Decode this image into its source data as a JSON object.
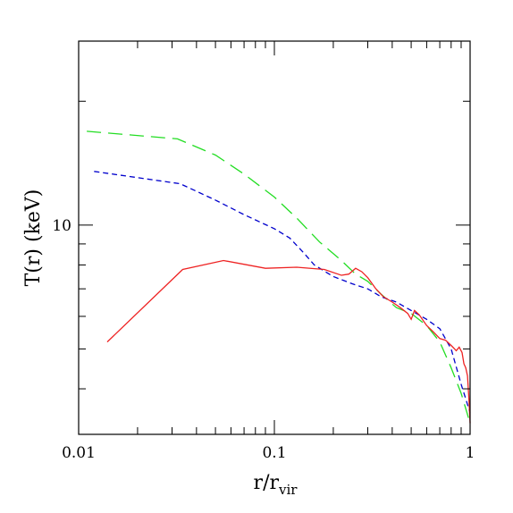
{
  "chart_data": {
    "type": "line",
    "title": "",
    "xlabel": "r/r",
    "xlabel_sub": "vir",
    "ylabel": "T(r)  (keV)",
    "xscale": "log",
    "yscale": "log",
    "xlim": [
      0.01,
      1
    ],
    "ylim": [
      3.1,
      28
    ],
    "x_ticks": [
      {
        "value": 0.01,
        "label": "0.01"
      },
      {
        "value": 0.1,
        "label": "0.1"
      },
      {
        "value": 1,
        "label": "1"
      }
    ],
    "y_ticks": [
      {
        "value": 10,
        "label": "10"
      }
    ],
    "grid": false,
    "legend": "none",
    "series": [
      {
        "color": "#22dd22",
        "dash": "long-dash",
        "points": [
          [
            0.011,
            16.9
          ],
          [
            0.032,
            16.2
          ],
          [
            0.05,
            14.8
          ],
          [
            0.07,
            13.3
          ],
          [
            0.1,
            11.7
          ],
          [
            0.13,
            10.4
          ],
          [
            0.17,
            9.1
          ],
          [
            0.22,
            8.2
          ],
          [
            0.26,
            7.6
          ],
          [
            0.3,
            7.3
          ],
          [
            0.35,
            6.8
          ],
          [
            0.42,
            6.3
          ],
          [
            0.5,
            6.1
          ],
          [
            0.6,
            5.7
          ],
          [
            0.7,
            5.2
          ],
          [
            0.8,
            4.5
          ],
          [
            0.9,
            3.9
          ],
          [
            1.0,
            3.3
          ]
        ]
      },
      {
        "color": "#0000cc",
        "dash": "short-dash",
        "points": [
          [
            0.012,
            13.5
          ],
          [
            0.033,
            12.6
          ],
          [
            0.05,
            11.5
          ],
          [
            0.07,
            10.6
          ],
          [
            0.1,
            9.8
          ],
          [
            0.12,
            9.3
          ],
          [
            0.14,
            8.6
          ],
          [
            0.16,
            8.0
          ],
          [
            0.2,
            7.5
          ],
          [
            0.25,
            7.2
          ],
          [
            0.3,
            7.0
          ],
          [
            0.35,
            6.7
          ],
          [
            0.42,
            6.5
          ],
          [
            0.5,
            6.2
          ],
          [
            0.6,
            5.9
          ],
          [
            0.7,
            5.6
          ],
          [
            0.8,
            5.0
          ],
          [
            0.9,
            4.1
          ],
          [
            1.0,
            3.5
          ]
        ]
      },
      {
        "color": "#ee2222",
        "dash": "solid",
        "points": [
          [
            0.014,
            5.2
          ],
          [
            0.034,
            7.8
          ],
          [
            0.055,
            8.2
          ],
          [
            0.09,
            7.85
          ],
          [
            0.13,
            7.9
          ],
          [
            0.18,
            7.8
          ],
          [
            0.22,
            7.55
          ],
          [
            0.24,
            7.6
          ],
          [
            0.26,
            7.85
          ],
          [
            0.28,
            7.7
          ],
          [
            0.3,
            7.45
          ],
          [
            0.33,
            7.0
          ],
          [
            0.36,
            6.7
          ],
          [
            0.4,
            6.5
          ],
          [
            0.44,
            6.3
          ],
          [
            0.48,
            6.1
          ],
          [
            0.5,
            5.9
          ],
          [
            0.52,
            6.2
          ],
          [
            0.55,
            6.05
          ],
          [
            0.6,
            5.7
          ],
          [
            0.65,
            5.5
          ],
          [
            0.7,
            5.3
          ],
          [
            0.75,
            5.25
          ],
          [
            0.8,
            5.1
          ],
          [
            0.85,
            4.95
          ],
          [
            0.88,
            5.05
          ],
          [
            0.91,
            4.9
          ],
          [
            0.93,
            4.6
          ],
          [
            0.95,
            4.5
          ],
          [
            0.97,
            4.3
          ],
          [
            0.985,
            3.8
          ],
          [
            1.0,
            3.3
          ]
        ]
      }
    ]
  }
}
